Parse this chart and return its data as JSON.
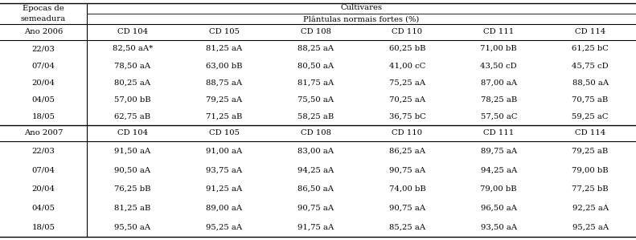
{
  "title_left": "Épocas de\nsemeadura",
  "title_right": "Cultivares",
  "subtitle_right": "Plântulas normais fortes (%)",
  "col_headers": [
    "CD 104",
    "CD 105",
    "CD 108",
    "CD 110",
    "CD 111",
    "CD 114"
  ],
  "section1_label": "Ano 2006",
  "section2_label": "Ano 2007",
  "rows_2006": [
    [
      "22/03",
      "82,50 aA*",
      "81,25 aA",
      "88,25 aA",
      "60,25 bB",
      "71,00 bB",
      "61,25 bC"
    ],
    [
      "07/04",
      "78,50 aA",
      "63,00 bB",
      "80,50 aA",
      "41,00 cC",
      "43,50 cD",
      "45,75 cD"
    ],
    [
      "20/04",
      "80,25 aA",
      "88,75 aA",
      "81,75 aA",
      "75,25 aA",
      "87,00 aA",
      "88,50 aA"
    ],
    [
      "04/05",
      "57,00 bB",
      "79,25 aA",
      "75,50 aA",
      "70,25 aA",
      "78,25 aB",
      "70,75 aB"
    ],
    [
      "18/05",
      "62,75 aB",
      "71,25 aB",
      "58,25 aB",
      "36,75 bC",
      "57,50 aC",
      "59,25 aC"
    ]
  ],
  "rows_2007": [
    [
      "22/03",
      "91,50 aA",
      "91,00 aA",
      "83,00 aA",
      "86,25 aA",
      "89,75 aA",
      "79,25 aB"
    ],
    [
      "07/04",
      "90,50 aA",
      "93,75 aA",
      "94,25 aA",
      "90,75 aA",
      "94,25 aA",
      "79,00 bB"
    ],
    [
      "20/04",
      "76,25 bB",
      "91,25 aA",
      "86,50 aA",
      "74,00 bB",
      "79,00 bB",
      "77,25 bB"
    ],
    [
      "04/05",
      "81,25 aB",
      "89,00 aA",
      "90,75 aA",
      "90,75 aA",
      "96,50 aA",
      "92,25 aA"
    ],
    [
      "18/05",
      "95,50 aA",
      "95,25 aA",
      "91,75 aA",
      "85,25 aA",
      "93,50 aA",
      "95,25 aA"
    ]
  ],
  "bg_color": "#ffffff",
  "text_color": "#000000",
  "font_size": 7.2,
  "header_font_size": 7.2
}
